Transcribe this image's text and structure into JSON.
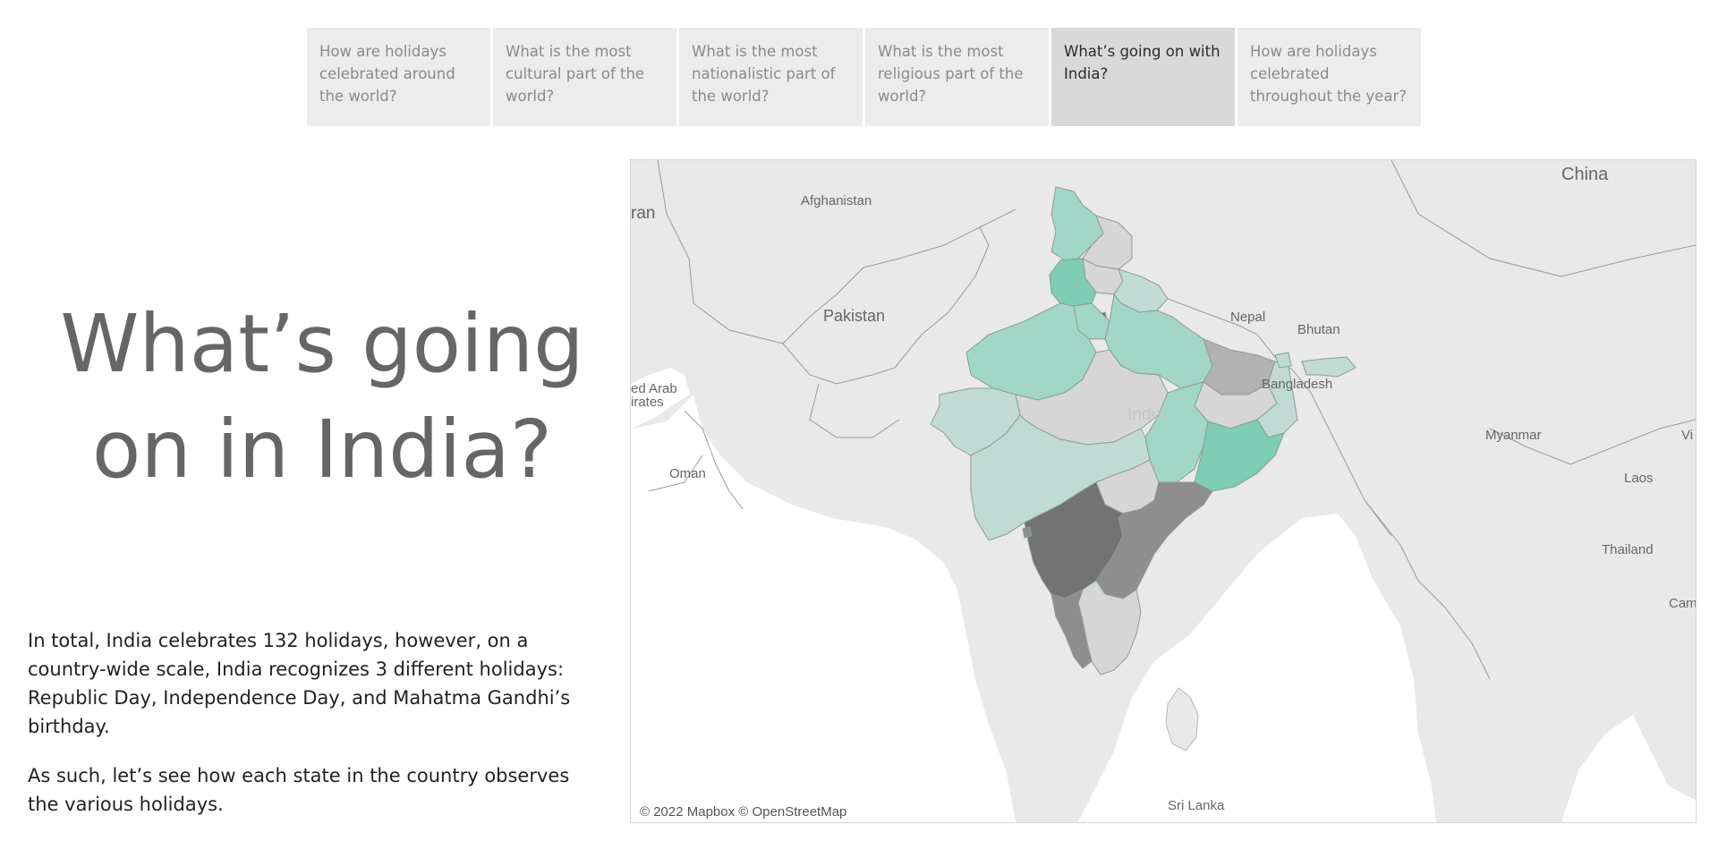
{
  "tabs": [
    {
      "label": "How are holidays celebrated around the world?",
      "active": false
    },
    {
      "label": "What is the most cultural part of the world?",
      "active": false
    },
    {
      "label": "What is the most nationalistic part of the world?",
      "active": false
    },
    {
      "label": "What is the most religious part of the world?",
      "active": false
    },
    {
      "label": "What’s going on with India?",
      "active": true
    },
    {
      "label": "How are holidays celebrated throughout the year?",
      "active": false
    }
  ],
  "headline": "What’s going on in India?",
  "body": {
    "paragraph1": "In total, India celebrates 132 holidays, however, on a country-wide scale, India recognizes 3 different holidays: Republic Day, Independence Day, and Mahatma Gandhi’s birthday.",
    "paragraph2": "As such, let’s see how each state in the country observes the various holidays."
  },
  "map": {
    "attribution": "© 2022 Mapbox © OpenStreetMap",
    "labels": {
      "china": "China",
      "iran": "ran",
      "afghanistan": "Afghanistan",
      "pakistan": "Pakistan",
      "nepal": "Nepal",
      "bhutan": "Bhutan",
      "bangladesh": "Bangladesh",
      "uae_line1": "ed Arab",
      "uae_line2": "irates",
      "india": "India",
      "oman": "Oman",
      "myanmar": "Myanmar",
      "vietnam": "Vi",
      "laos": "Laos",
      "thailand": "Thailand",
      "cambodia": "Camb",
      "sri_lanka": "Sri Lanka"
    },
    "colors": {
      "land": "#e9e9e9",
      "sea": "#ffffff",
      "teal_light": "#c0dad4",
      "teal_mid": "#a2d6c7",
      "teal_strong": "#7fcdb5",
      "grey_light": "#d6d6d6",
      "grey_mid": "#b2b2b2",
      "grey_dark": "#8e8e8e",
      "grey_darkest": "#737373"
    }
  }
}
